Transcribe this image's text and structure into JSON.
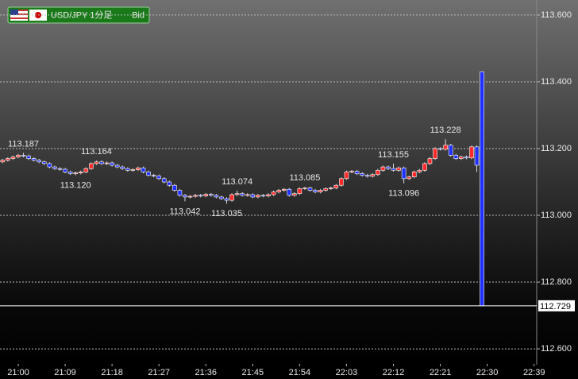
{
  "chart_data": {
    "type": "candlestick",
    "symbol": "USD/JPY 1分足",
    "price_type": "Bid",
    "up_color": "#ff2a2a",
    "down_color": "#2030ff",
    "grid": true,
    "ylim": [
      112.555,
      113.645
    ],
    "yticks": [
      {
        "value": 113.6,
        "label": "113.600"
      },
      {
        "value": 113.4,
        "label": "113.400"
      },
      {
        "value": 113.2,
        "label": "113.200"
      },
      {
        "value": 113.0,
        "label": "113.000"
      },
      {
        "value": 112.8,
        "label": "112.800"
      },
      {
        "value": 112.6,
        "label": "112.600"
      }
    ],
    "last_price": 112.729,
    "categories": [
      null,
      null,
      null,
      "21:00",
      null,
      null,
      null,
      null,
      null,
      null,
      null,
      null,
      "21:09",
      null,
      null,
      null,
      null,
      null,
      null,
      null,
      null,
      "21:18",
      null,
      null,
      null,
      null,
      null,
      null,
      null,
      null,
      "21:27",
      null,
      null,
      null,
      null,
      null,
      null,
      null,
      null,
      "21:36",
      null,
      null,
      null,
      null,
      null,
      null,
      null,
      null,
      "21:45",
      null,
      null,
      null,
      null,
      null,
      null,
      null,
      null,
      "21:54",
      null,
      null,
      null,
      null,
      null,
      null,
      null,
      null,
      "22:03",
      null,
      null,
      null,
      null,
      null,
      null,
      null,
      null,
      "22:12",
      null,
      null,
      null,
      null,
      null,
      null,
      null,
      null,
      "22:21",
      null,
      null,
      null,
      null,
      null,
      null,
      null,
      null,
      "22:30",
      null,
      null,
      null,
      null,
      null,
      null,
      null,
      null,
      "22:39"
    ],
    "open": [
      113.16,
      113.165,
      113.17,
      113.175,
      113.18,
      113.178,
      113.17,
      113.165,
      113.16,
      113.155,
      113.145,
      113.14,
      113.138,
      113.13,
      113.125,
      113.127,
      113.13,
      113.14,
      113.155,
      113.16,
      113.155,
      113.157,
      113.15,
      113.145,
      113.14,
      113.135,
      113.137,
      113.142,
      113.13,
      113.12,
      113.118,
      113.11,
      113.1,
      113.09,
      113.075,
      113.06,
      113.055,
      113.057,
      113.06,
      113.058,
      113.063,
      113.06,
      113.055,
      113.05,
      113.045,
      113.062,
      113.065,
      113.06,
      113.062,
      113.055,
      113.06,
      113.058,
      113.062,
      113.07,
      113.075,
      113.078,
      113.06,
      113.065,
      113.08,
      113.082,
      113.075,
      113.07,
      113.075,
      113.08,
      113.082,
      113.09,
      113.11,
      113.13,
      113.132,
      113.125,
      113.12,
      113.117,
      113.122,
      113.135,
      113.145,
      113.14,
      113.135,
      113.142,
      113.11,
      113.115,
      113.13,
      113.135,
      113.155,
      113.17,
      113.2,
      113.198,
      113.21,
      113.18,
      113.17,
      113.175,
      113.172,
      113.205,
      113.43,
      null,
      null,
      null,
      null,
      null,
      null,
      null,
      null,
      null,
      null
    ],
    "high": [
      113.169,
      113.174,
      113.179,
      113.184,
      113.187,
      113.182,
      113.174,
      113.169,
      113.164,
      113.159,
      113.149,
      113.144,
      113.142,
      113.134,
      113.131,
      113.134,
      113.144,
      113.159,
      113.164,
      113.164,
      113.161,
      113.161,
      113.154,
      113.149,
      113.144,
      113.141,
      113.146,
      113.146,
      113.134,
      113.124,
      113.122,
      113.114,
      113.104,
      113.094,
      113.079,
      113.064,
      113.061,
      113.064,
      113.064,
      113.067,
      113.067,
      113.064,
      113.059,
      113.054,
      113.066,
      113.074,
      113.069,
      113.066,
      113.066,
      113.064,
      113.064,
      113.066,
      113.074,
      113.079,
      113.082,
      113.082,
      113.069,
      113.084,
      113.085,
      113.086,
      113.079,
      113.079,
      113.084,
      113.086,
      113.094,
      113.114,
      113.134,
      113.136,
      113.136,
      113.129,
      113.124,
      113.126,
      113.139,
      113.149,
      113.149,
      113.155,
      113.146,
      113.146,
      113.119,
      113.134,
      113.139,
      113.159,
      113.174,
      113.204,
      113.204,
      113.228,
      113.214,
      113.184,
      113.179,
      113.179,
      113.209,
      113.209,
      113.43,
      null,
      null,
      null,
      null,
      null,
      null,
      null,
      null,
      null,
      null
    ],
    "low": [
      113.156,
      113.161,
      113.166,
      113.171,
      113.174,
      113.166,
      113.161,
      113.156,
      113.151,
      113.141,
      113.136,
      113.134,
      113.126,
      113.121,
      113.12,
      113.123,
      113.126,
      113.136,
      113.151,
      113.151,
      113.151,
      113.146,
      113.141,
      113.136,
      113.131,
      113.131,
      113.133,
      113.126,
      113.116,
      113.114,
      113.106,
      113.096,
      113.086,
      113.071,
      113.056,
      113.042,
      113.051,
      113.053,
      113.054,
      113.054,
      113.056,
      113.051,
      113.046,
      113.035,
      113.041,
      113.058,
      113.056,
      113.056,
      113.051,
      113.051,
      113.054,
      113.054,
      113.058,
      113.066,
      113.071,
      113.056,
      113.056,
      113.061,
      113.076,
      113.071,
      113.066,
      113.066,
      113.071,
      113.076,
      113.078,
      113.086,
      113.106,
      113.126,
      113.121,
      113.116,
      113.113,
      113.113,
      113.118,
      113.131,
      113.136,
      113.131,
      113.131,
      113.096,
      113.106,
      113.111,
      113.126,
      113.131,
      113.151,
      113.166,
      113.194,
      113.194,
      113.176,
      113.166,
      113.166,
      113.168,
      113.168,
      113.13,
      112.729,
      null,
      null,
      null,
      null,
      null,
      null,
      null,
      null,
      null,
      null
    ],
    "close": [
      113.165,
      113.17,
      113.175,
      113.18,
      113.178,
      113.17,
      113.165,
      113.16,
      113.155,
      113.145,
      113.14,
      113.138,
      113.13,
      113.125,
      113.127,
      113.13,
      113.14,
      113.155,
      113.16,
      113.155,
      113.157,
      113.15,
      113.145,
      113.14,
      113.135,
      113.137,
      113.142,
      113.13,
      113.12,
      113.118,
      113.11,
      113.1,
      113.09,
      113.075,
      113.06,
      113.055,
      113.057,
      113.06,
      113.058,
      113.063,
      113.06,
      113.055,
      113.05,
      113.045,
      113.062,
      113.065,
      113.06,
      113.062,
      113.055,
      113.06,
      113.058,
      113.062,
      113.07,
      113.075,
      113.078,
      113.06,
      113.065,
      113.08,
      113.082,
      113.075,
      113.07,
      113.075,
      113.08,
      113.082,
      113.09,
      113.11,
      113.13,
      113.132,
      113.125,
      113.12,
      113.117,
      113.122,
      113.135,
      113.145,
      113.14,
      113.135,
      113.142,
      113.11,
      113.115,
      113.13,
      113.135,
      113.155,
      113.17,
      113.2,
      113.198,
      113.21,
      113.18,
      113.17,
      113.175,
      113.172,
      113.205,
      113.15,
      112.729,
      null,
      null,
      null,
      null,
      null,
      null,
      null,
      null,
      null,
      null
    ],
    "high_labels": [
      null,
      null,
      null,
      null,
      "113.187",
      null,
      null,
      null,
      null,
      null,
      null,
      null,
      null,
      null,
      null,
      null,
      null,
      null,
      "113.164",
      null,
      null,
      null,
      null,
      null,
      null,
      null,
      null,
      null,
      null,
      null,
      null,
      null,
      null,
      null,
      null,
      null,
      null,
      null,
      null,
      null,
      null,
      null,
      null,
      null,
      null,
      "113.074",
      null,
      null,
      null,
      null,
      null,
      null,
      null,
      null,
      null,
      null,
      null,
      null,
      "113.085",
      null,
      null,
      null,
      null,
      null,
      null,
      null,
      null,
      null,
      null,
      null,
      null,
      null,
      null,
      null,
      null,
      "113.155",
      null,
      null,
      null,
      null,
      null,
      null,
      null,
      null,
      null,
      "113.228",
      null,
      null,
      null,
      null,
      null,
      null,
      null,
      null,
      null,
      null,
      null,
      null,
      null,
      null,
      null,
      null,
      null
    ],
    "low_labels": [
      null,
      null,
      null,
      null,
      null,
      null,
      null,
      null,
      null,
      null,
      null,
      null,
      null,
      null,
      "113.120",
      null,
      null,
      null,
      null,
      null,
      null,
      null,
      null,
      null,
      null,
      null,
      null,
      null,
      null,
      null,
      null,
      null,
      null,
      null,
      null,
      "113.042",
      null,
      null,
      null,
      null,
      null,
      null,
      null,
      "113.035",
      null,
      null,
      null,
      null,
      null,
      null,
      null,
      null,
      null,
      null,
      null,
      null,
      null,
      null,
      null,
      null,
      null,
      null,
      null,
      null,
      null,
      null,
      null,
      null,
      null,
      null,
      null,
      null,
      null,
      null,
      null,
      null,
      null,
      "113.096",
      null,
      null,
      null,
      null,
      null,
      null,
      null,
      null,
      null,
      null,
      null,
      null,
      null,
      null,
      null,
      null,
      null,
      null,
      null,
      null,
      null,
      null,
      null,
      null,
      null
    ]
  }
}
